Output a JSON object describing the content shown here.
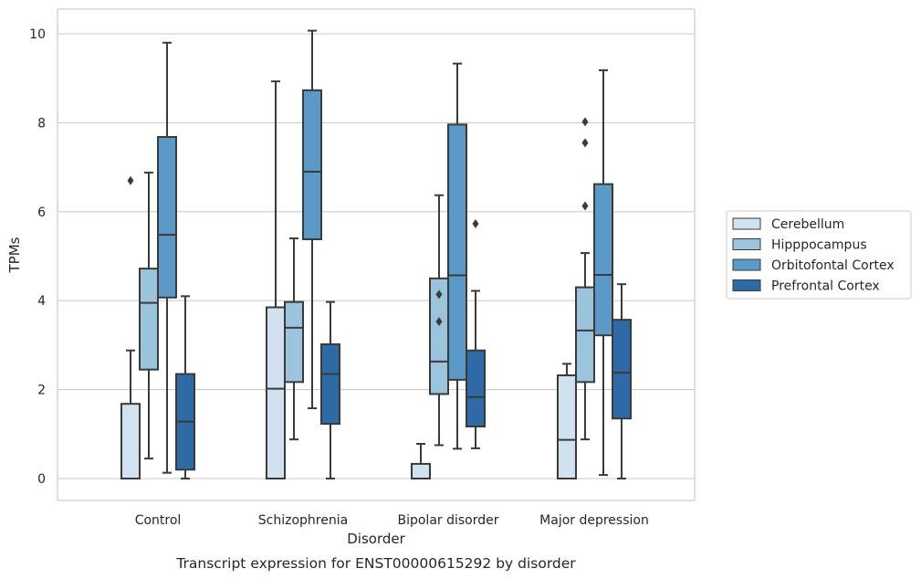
{
  "chart_data": {
    "type": "box",
    "title": "",
    "caption": "Transcript expression for ENST00000615292 by disorder",
    "xlabel": "Disorder",
    "ylabel": "TPMs",
    "ylim": [
      -0.47,
      10.6
    ],
    "yticks": [
      0,
      2,
      4,
      6,
      8,
      10
    ],
    "grid": true,
    "legend_position": "right",
    "categories": [
      "Control",
      "Schizophrenia",
      "Bipolar disorder",
      "Major depression"
    ],
    "series": [
      {
        "name": "Cerebellum",
        "color": "#d2e1f0",
        "boxes": [
          {
            "whislo": 0,
            "q1": 0,
            "med": 0,
            "q3": 1.68,
            "whishi": 2.88,
            "fliers": [
              6.7
            ]
          },
          {
            "whislo": 0,
            "q1": 0,
            "med": 2.02,
            "q3": 3.85,
            "whishi": 8.93,
            "fliers": []
          },
          {
            "whislo": 0,
            "q1": 0,
            "med": 0,
            "q3": 0.33,
            "whishi": 0.78,
            "fliers": []
          },
          {
            "whislo": 0,
            "q1": 0,
            "med": 0.87,
            "q3": 2.32,
            "whishi": 2.58,
            "fliers": []
          }
        ]
      },
      {
        "name": "Hipppocampus",
        "color": "#9cc3dc",
        "boxes": [
          {
            "whislo": 0.45,
            "q1": 2.45,
            "med": 3.95,
            "q3": 4.72,
            "whishi": 6.88,
            "fliers": []
          },
          {
            "whislo": 0.88,
            "q1": 2.17,
            "med": 3.39,
            "q3": 3.97,
            "whishi": 5.4,
            "fliers": []
          },
          {
            "whislo": 0.75,
            "q1": 1.9,
            "med": 2.63,
            "q3": 4.5,
            "whishi": 6.37,
            "fliers": [
              3.53,
              4.14
            ]
          },
          {
            "whislo": 0.88,
            "q1": 2.17,
            "med": 3.33,
            "q3": 4.3,
            "whishi": 5.07,
            "fliers": [
              6.13,
              7.55,
              8.02
            ]
          }
        ]
      },
      {
        "name": "Orbitofontal Cortex",
        "color": "#5b9ac6",
        "boxes": [
          {
            "whislo": 0.13,
            "q1": 4.07,
            "med": 5.48,
            "q3": 7.68,
            "whishi": 9.8,
            "fliers": []
          },
          {
            "whislo": 1.58,
            "q1": 5.38,
            "med": 6.9,
            "q3": 8.73,
            "whishi": 10.07,
            "fliers": []
          },
          {
            "whislo": 0.67,
            "q1": 2.22,
            "med": 4.57,
            "q3": 7.96,
            "whishi": 9.33,
            "fliers": []
          },
          {
            "whislo": 0.08,
            "q1": 3.22,
            "med": 4.58,
            "q3": 6.62,
            "whishi": 9.18,
            "fliers": []
          }
        ]
      },
      {
        "name": "Prefrontal Cortex",
        "color": "#2d6aa6",
        "boxes": [
          {
            "whislo": 0,
            "q1": 0.2,
            "med": 1.28,
            "q3": 2.35,
            "whishi": 4.1,
            "fliers": []
          },
          {
            "whislo": 0,
            "q1": 1.23,
            "med": 2.35,
            "q3": 3.02,
            "whishi": 3.97,
            "fliers": []
          },
          {
            "whislo": 0.68,
            "q1": 1.17,
            "med": 1.83,
            "q3": 2.88,
            "whishi": 4.22,
            "fliers": [
              5.73
            ]
          },
          {
            "whislo": 0,
            "q1": 1.35,
            "med": 2.38,
            "q3": 3.57,
            "whishi": 4.37,
            "fliers": []
          }
        ]
      }
    ]
  }
}
